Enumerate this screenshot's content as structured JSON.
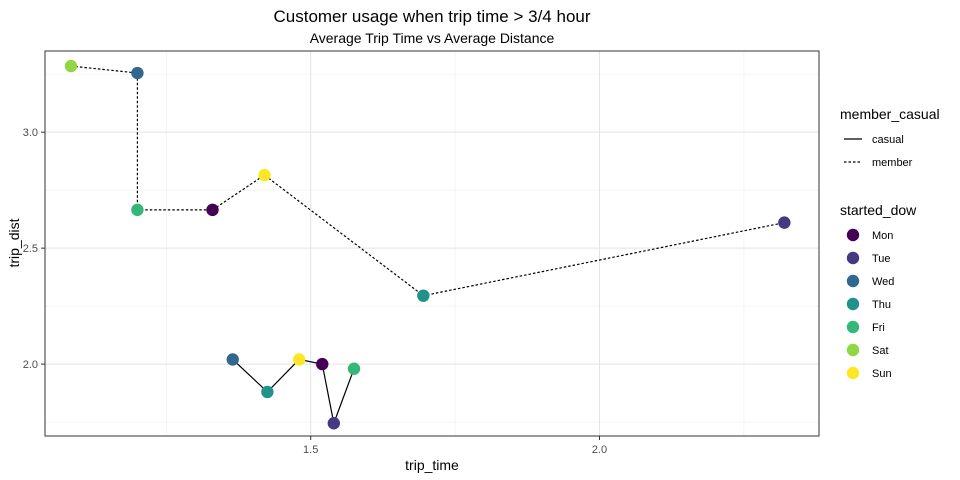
{
  "chart_data": {
    "type": "line",
    "title": "Customer usage when trip time > 3/4 hour",
    "subtitle": "Average Trip Time vs Average Distance",
    "xlabel": "trip_time",
    "ylabel": "trip_dist",
    "xlim": [
      1.04,
      2.38
    ],
    "ylim": [
      1.69,
      3.35
    ],
    "x_ticks": [
      1.5,
      2.0
    ],
    "x_tick_labels": [
      "1.5",
      "2.0"
    ],
    "y_ticks": [
      2.0,
      2.5,
      3.0
    ],
    "y_tick_labels": [
      "2.0",
      "2.5",
      "3.0"
    ],
    "grid": true,
    "legend_position": "right",
    "linetype_legend": {
      "title": "member_casual",
      "entries": [
        {
          "label": "casual",
          "style": "solid"
        },
        {
          "label": "member",
          "style": "dashed"
        }
      ]
    },
    "color_legend": {
      "title": "started_dow",
      "entries": [
        {
          "label": "Mon",
          "color": "#440154"
        },
        {
          "label": "Tue",
          "color": "#443983"
        },
        {
          "label": "Wed",
          "color": "#31688e"
        },
        {
          "label": "Thu",
          "color": "#21918c"
        },
        {
          "label": "Fri",
          "color": "#35b779"
        },
        {
          "label": "Sat",
          "color": "#90d743"
        },
        {
          "label": "Sun",
          "color": "#fde725"
        }
      ]
    },
    "series": [
      {
        "name": "casual",
        "style": "solid",
        "points": [
          {
            "dow": "Wed",
            "x": 1.365,
            "y": 2.02
          },
          {
            "dow": "Thu",
            "x": 1.425,
            "y": 1.88
          },
          {
            "dow": "Sun",
            "x": 1.48,
            "y": 2.02
          },
          {
            "dow": "Mon",
            "x": 1.52,
            "y": 2.0
          },
          {
            "dow": "Tue",
            "x": 1.54,
            "y": 1.745
          },
          {
            "dow": "Fri",
            "x": 1.575,
            "y": 1.98
          }
        ]
      },
      {
        "name": "member",
        "style": "dashed",
        "points": [
          {
            "dow": "Sat",
            "x": 1.085,
            "y": 3.285
          },
          {
            "dow": "Wed",
            "x": 1.2,
            "y": 3.255
          },
          {
            "dow": "Fri",
            "x": 1.2,
            "y": 2.665
          },
          {
            "dow": "Mon",
            "x": 1.33,
            "y": 2.665
          },
          {
            "dow": "Sun",
            "x": 1.42,
            "y": 2.815
          },
          {
            "dow": "Thu",
            "x": 1.695,
            "y": 2.295
          },
          {
            "dow": "Tue",
            "x": 2.32,
            "y": 2.61
          }
        ]
      }
    ]
  }
}
